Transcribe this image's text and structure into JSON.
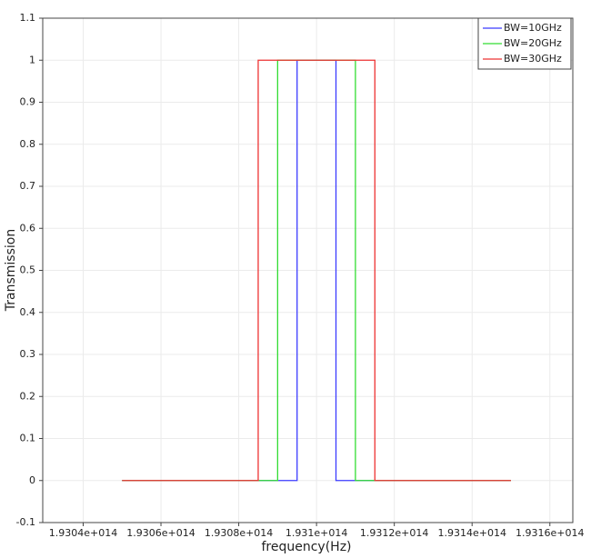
{
  "chart_data": {
    "type": "line",
    "xlabel": "frequency(Hz)",
    "ylabel": "Transmission",
    "xlim": [
      193029600000000,
      193165900000000
    ],
    "ylim": [
      -0.1,
      1.1
    ],
    "xticks": [
      {
        "value": 193040000000000,
        "label": "1.9304e+014"
      },
      {
        "value": 193060000000000,
        "label": "1.9306e+014"
      },
      {
        "value": 193080000000000,
        "label": "1.9308e+014"
      },
      {
        "value": 193100000000000,
        "label": "1.931e+014"
      },
      {
        "value": 193120000000000,
        "label": "1.9312e+014"
      },
      {
        "value": 193140000000000,
        "label": "1.9314e+014"
      },
      {
        "value": 193160000000000,
        "label": "1.9316e+014"
      }
    ],
    "yticks": [
      -0.1,
      0,
      0.1,
      0.2,
      0.3,
      0.4,
      0.5,
      0.6,
      0.7,
      0.8,
      0.9,
      1,
      1.1
    ],
    "grid": true,
    "legend": "upper right",
    "series": [
      {
        "name": "BW=10GHz",
        "color": "#3b3bff",
        "x": [
          193050000000000,
          193095000000000,
          193095000000000,
          193105000000000,
          193105000000000,
          193150000000000
        ],
        "values": [
          0,
          0,
          1,
          1,
          0,
          0
        ]
      },
      {
        "name": "BW=20GHz",
        "color": "#33dd33",
        "x": [
          193050000000000,
          193090000000000,
          193090000000000,
          193110000000000,
          193110000000000,
          193150000000000
        ],
        "values": [
          0,
          0,
          1,
          1,
          0,
          0
        ]
      },
      {
        "name": "BW=30GHz",
        "color": "#ee3333",
        "x": [
          193050000000000,
          193085000000000,
          193085000000000,
          193115000000000,
          193115000000000,
          193150000000000
        ],
        "values": [
          0,
          0,
          1,
          1,
          0,
          0
        ]
      }
    ]
  }
}
